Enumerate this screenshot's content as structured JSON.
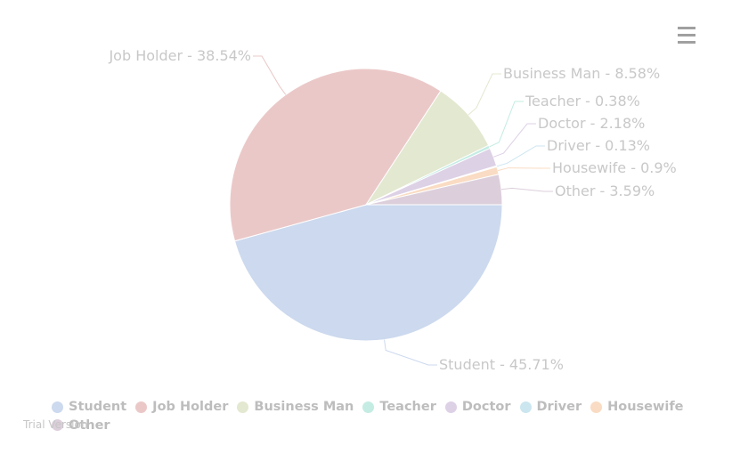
{
  "chart_data": {
    "type": "pie",
    "title": "",
    "slices": [
      {
        "name": "Student",
        "value": 45.71,
        "label": "Student - 45.71%",
        "color": "#ccd9ee"
      },
      {
        "name": "Job Holder",
        "value": 38.54,
        "label": "Job Holder - 38.54%",
        "color": "#ebc8c8"
      },
      {
        "name": "Business Man",
        "value": 8.58,
        "label": "Business Man - 8.58%",
        "color": "#e3e8d0"
      },
      {
        "name": "Teacher",
        "value": 0.38,
        "label": "Teacher - 0.38%",
        "color": "#c4ece3"
      },
      {
        "name": "Doctor",
        "value": 2.18,
        "label": "Doctor - 2.18%",
        "color": "#ddd1e6"
      },
      {
        "name": "Driver",
        "value": 0.13,
        "label": "Driver - 0.13%",
        "color": "#cce6f0"
      },
      {
        "name": "Housewife",
        "value": 0.9,
        "label": "Housewife - 0.9%",
        "color": "#f9dcc3"
      },
      {
        "name": "Other",
        "value": 3.59,
        "label": "Other - 3.59%",
        "color": "#dccfdb"
      }
    ],
    "legend_position": "bottom-left"
  },
  "menu_icon": "hamburger-icon",
  "watermark": "Trial Version"
}
